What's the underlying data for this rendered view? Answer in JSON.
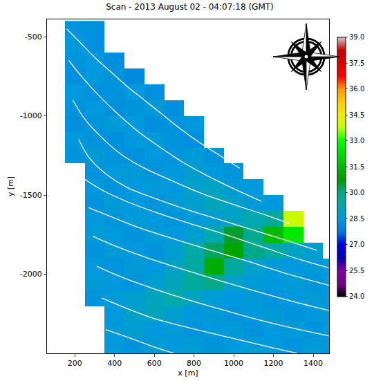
{
  "chart_data": {
    "type": "heatmap",
    "title": "Scan - 2013 August 02 - 04:07:18 (GMT)",
    "x_label": "x [m]",
    "y_label": "y [m]",
    "xlim": [
      60,
      1480
    ],
    "ylim": [
      -2500,
      -390
    ],
    "xticks": [
      200,
      400,
      600,
      800,
      1000,
      1200,
      1400
    ],
    "yticks": [
      -500,
      -1000,
      -1500,
      -2000
    ],
    "x": [
      100,
      200,
      300,
      400,
      500,
      600,
      700,
      800,
      900,
      1000,
      1100,
      1200,
      1300,
      1400,
      1500
    ],
    "y": [
      -450,
      -550,
      -650,
      -750,
      -850,
      -950,
      -1050,
      -1150,
      -1250,
      -1350,
      -1450,
      -1550,
      -1650,
      -1750,
      -1850,
      -1950,
      -2050,
      -2150,
      -2250,
      -2350,
      -2450
    ],
    "z": [
      [
        null,
        28.4,
        28.3,
        null,
        null,
        null,
        null,
        null,
        null,
        null,
        null,
        null,
        null,
        null,
        null
      ],
      [
        null,
        28.5,
        28.3,
        null,
        null,
        null,
        null,
        null,
        null,
        null,
        null,
        null,
        null,
        null,
        null
      ],
      [
        null,
        28.4,
        28.5,
        28.3,
        null,
        null,
        null,
        null,
        null,
        null,
        null,
        null,
        null,
        null,
        null
      ],
      [
        null,
        28.3,
        28.5,
        28.4,
        28.2,
        null,
        null,
        null,
        null,
        null,
        null,
        null,
        null,
        null,
        null
      ],
      [
        null,
        28.5,
        28.3,
        28.4,
        28.5,
        28.3,
        null,
        null,
        null,
        null,
        null,
        null,
        null,
        null,
        null
      ],
      [
        null,
        28.4,
        28.5,
        28.3,
        28.4,
        28.6,
        28.3,
        null,
        null,
        null,
        null,
        null,
        null,
        null,
        null
      ],
      [
        null,
        28.3,
        28.4,
        28.6,
        28.5,
        28.3,
        28.4,
        28.5,
        null,
        null,
        null,
        null,
        null,
        null,
        null
      ],
      [
        null,
        28.5,
        28.4,
        28.3,
        28.5,
        28.6,
        28.4,
        28.3,
        null,
        null,
        null,
        null,
        null,
        null,
        null
      ],
      [
        null,
        28.4,
        28.6,
        28.4,
        28.3,
        28.5,
        28.4,
        28.6,
        28.4,
        null,
        null,
        null,
        null,
        null,
        null
      ],
      [
        null,
        null,
        28.4,
        28.5,
        28.6,
        28.4,
        28.5,
        28.7,
        28.5,
        28.4,
        null,
        null,
        null,
        null,
        null
      ],
      [
        null,
        null,
        28.5,
        28.4,
        28.5,
        28.6,
        28.5,
        28.8,
        28.9,
        28.6,
        28.5,
        null,
        null,
        null,
        null
      ],
      [
        null,
        null,
        28.4,
        28.6,
        28.5,
        28.4,
        28.6,
        28.7,
        29.0,
        28.8,
        28.6,
        28.5,
        null,
        null,
        null
      ],
      [
        null,
        null,
        28.5,
        28.4,
        28.6,
        28.5,
        28.4,
        28.6,
        28.7,
        28.9,
        29.2,
        29.6,
        34.0,
        null,
        null
      ],
      [
        null,
        null,
        28.6,
        28.5,
        28.4,
        28.6,
        28.5,
        28.7,
        29.2,
        30.5,
        29.8,
        31.5,
        32.5,
        null,
        null
      ],
      [
        null,
        null,
        28.4,
        28.6,
        28.5,
        28.4,
        28.7,
        29.3,
        30.2,
        31.0,
        30.0,
        29.5,
        28.9,
        28.7,
        null
      ],
      [
        null,
        null,
        28.5,
        28.4,
        28.6,
        28.5,
        28.8,
        29.4,
        31.2,
        29.6,
        28.8,
        28.6,
        28.5,
        28.6,
        28.5
      ],
      [
        null,
        null,
        28.6,
        28.5,
        28.4,
        28.7,
        29.0,
        29.6,
        30.0,
        28.8,
        28.6,
        28.5,
        28.6,
        28.4,
        28.5
      ],
      [
        null,
        null,
        28.4,
        28.6,
        28.7,
        29.0,
        29.3,
        28.9,
        28.6,
        28.5,
        28.6,
        28.4,
        28.5,
        28.6,
        28.5
      ],
      [
        null,
        null,
        null,
        28.5,
        28.8,
        29.0,
        28.7,
        28.5,
        28.6,
        28.4,
        28.5,
        28.6,
        28.4,
        28.5,
        28.6
      ],
      [
        null,
        null,
        null,
        28.6,
        28.7,
        28.5,
        28.6,
        28.4,
        28.5,
        28.6,
        28.4,
        28.5,
        28.6,
        28.4,
        28.5
      ],
      [
        null,
        null,
        null,
        28.5,
        28.4,
        28.6,
        28.5,
        28.6,
        28.4,
        28.5,
        28.6,
        28.5,
        28.4,
        28.6,
        28.5
      ]
    ],
    "colorbar": {
      "range": [
        24,
        39
      ],
      "ticks": [
        {
          "value": 24,
          "label": "24.0"
        },
        {
          "value": 25.5,
          "label": "25.5"
        },
        {
          "value": 27,
          "label": "27.0"
        },
        {
          "value": 28.5,
          "label": "28.5"
        },
        {
          "value": 30,
          "label": "30.0"
        },
        {
          "value": 31.5,
          "label": "31.5"
        },
        {
          "value": 33,
          "label": "33.0"
        },
        {
          "value": 34.5,
          "label": "34.5"
        },
        {
          "value": 36,
          "label": "36.0"
        },
        {
          "value": 37.5,
          "label": "37.5"
        },
        {
          "value": 39,
          "label": "39.0"
        }
      ]
    },
    "streamlines": {
      "color": "#ffffff",
      "lines": [
        {
          "x": [
            160,
            230,
            300,
            380,
            460,
            550,
            640,
            730,
            830,
            930,
            1030
          ],
          "y": [
            -450,
            -540,
            -630,
            -720,
            -810,
            -900,
            -990,
            -1080,
            -1170,
            -1250,
            -1330
          ]
        },
        {
          "x": [
            170,
            240,
            320,
            410,
            510,
            620,
            740,
            870,
            1000,
            1140
          ],
          "y": [
            -650,
            -760,
            -870,
            -980,
            -1090,
            -1190,
            -1290,
            -1380,
            -1460,
            -1540
          ]
        },
        {
          "x": [
            190,
            250,
            330,
            430,
            550,
            690,
            840,
            1000,
            1170,
            1280
          ],
          "y": [
            -900,
            -1020,
            -1130,
            -1240,
            -1330,
            -1410,
            -1490,
            -1560,
            -1630,
            -1680
          ]
        },
        {
          "x": [
            220,
            270,
            350,
            460,
            600,
            760,
            940,
            1120,
            1300,
            1420
          ],
          "y": [
            -1150,
            -1260,
            -1360,
            -1450,
            -1520,
            -1590,
            -1660,
            -1730,
            -1800,
            -1850
          ]
        },
        {
          "x": [
            250,
            340,
            460,
            610,
            780,
            960,
            1150,
            1340,
            1480
          ],
          "y": [
            -1400,
            -1470,
            -1540,
            -1610,
            -1680,
            -1750,
            -1830,
            -1910,
            -1960
          ]
        },
        {
          "x": [
            270,
            370,
            510,
            680,
            860,
            1050,
            1250,
            1480
          ],
          "y": [
            -1580,
            -1630,
            -1700,
            -1770,
            -1840,
            -1910,
            -1990,
            -2070
          ]
        },
        {
          "x": [
            290,
            400,
            550,
            720,
            900,
            1090,
            1290,
            1480
          ],
          "y": [
            -1760,
            -1820,
            -1890,
            -1960,
            -2030,
            -2100,
            -2170,
            -2230
          ]
        },
        {
          "x": [
            310,
            420,
            570,
            740,
            930,
            1130,
            1330,
            1480
          ],
          "y": [
            -1950,
            -2010,
            -2080,
            -2150,
            -2220,
            -2290,
            -2350,
            -2390
          ]
        },
        {
          "x": [
            335,
            450,
            600,
            780,
            980,
            1180,
            1320
          ],
          "y": [
            -2150,
            -2210,
            -2280,
            -2340,
            -2400,
            -2460,
            -2500
          ]
        },
        {
          "x": [
            355,
            470,
            600,
            700
          ],
          "y": [
            -2350,
            -2400,
            -2460,
            -2500
          ]
        }
      ]
    }
  }
}
